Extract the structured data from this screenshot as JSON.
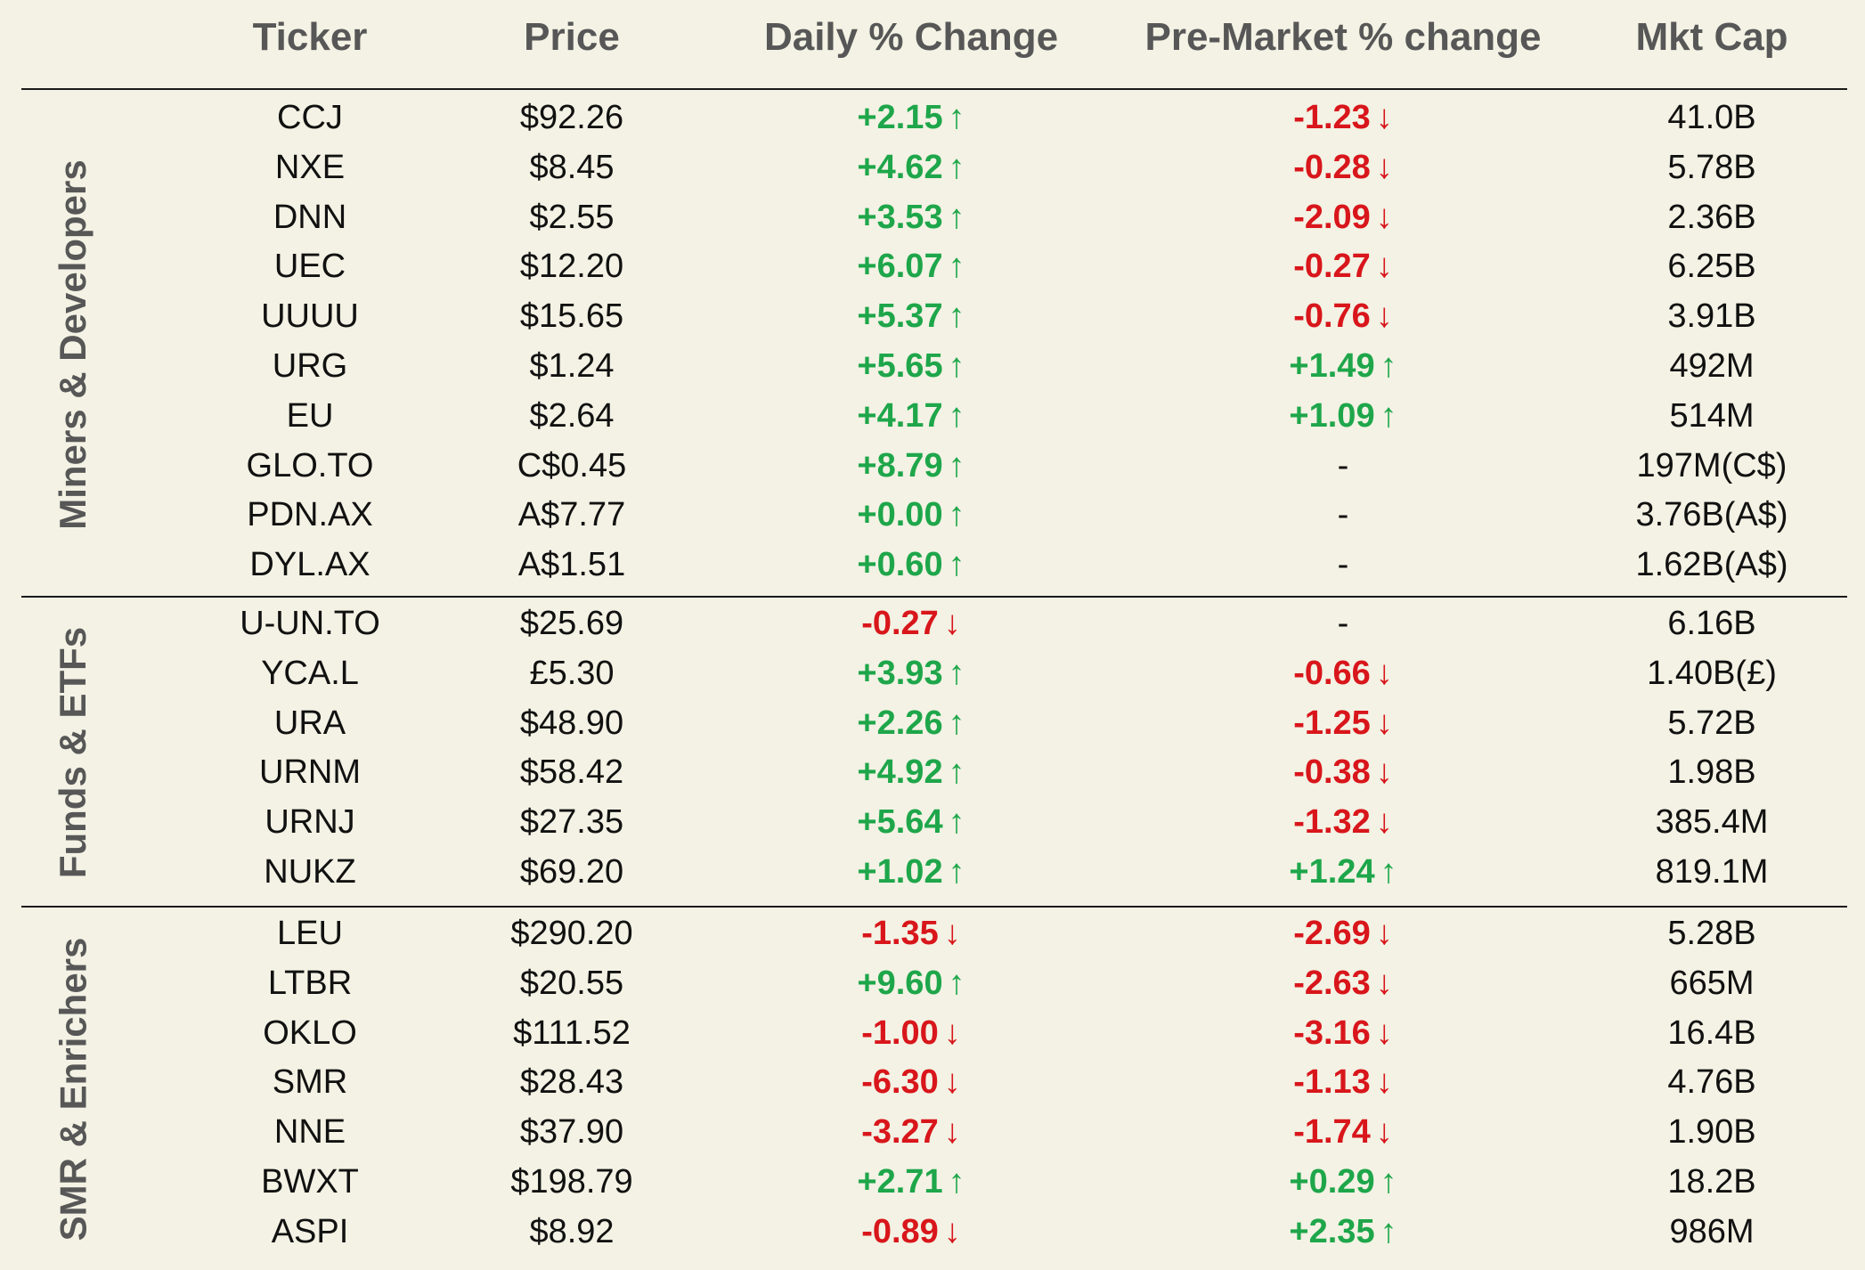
{
  "columns": [
    "Ticker",
    "Price",
    "Daily % Change",
    "Pre-Market % change",
    "Mkt Cap"
  ],
  "colors": {
    "up": "#1ea64a",
    "down": "#d8161b",
    "header": "#575757",
    "background": "#f3f2e4"
  },
  "icons": {
    "up": "↑",
    "down": "↓"
  },
  "chart_data": {
    "type": "table",
    "groups": [
      {
        "name": "Miners & Developers",
        "rows": [
          {
            "ticker": "CCJ",
            "price": "$92.26",
            "daily": "+2.15",
            "premarket": "-1.23",
            "mktcap": "41.0B"
          },
          {
            "ticker": "NXE",
            "price": "$8.45",
            "daily": "+4.62",
            "premarket": "-0.28",
            "mktcap": "5.78B"
          },
          {
            "ticker": "DNN",
            "price": "$2.55",
            "daily": "+3.53",
            "premarket": "-2.09",
            "mktcap": "2.36B"
          },
          {
            "ticker": "UEC",
            "price": "$12.20",
            "daily": "+6.07",
            "premarket": "-0.27",
            "mktcap": "6.25B"
          },
          {
            "ticker": "UUUU",
            "price": "$15.65",
            "daily": "+5.37",
            "premarket": "-0.76",
            "mktcap": "3.91B"
          },
          {
            "ticker": "URG",
            "price": "$1.24",
            "daily": "+5.65",
            "premarket": "+1.49",
            "mktcap": "492M"
          },
          {
            "ticker": "EU",
            "price": "$2.64",
            "daily": "+4.17",
            "premarket": "+1.09",
            "mktcap": "514M"
          },
          {
            "ticker": "GLO.TO",
            "price": "C$0.45",
            "daily": "+8.79",
            "premarket": "-",
            "mktcap": "197M(C$)"
          },
          {
            "ticker": "PDN.AX",
            "price": "A$7.77",
            "daily": "+0.00",
            "premarket": "-",
            "mktcap": "3.76B(A$)"
          },
          {
            "ticker": "DYL.AX",
            "price": "A$1.51",
            "daily": "+0.60",
            "premarket": "-",
            "mktcap": "1.62B(A$)"
          }
        ]
      },
      {
        "name": "Funds & ETFs",
        "rows": [
          {
            "ticker": "U-UN.TO",
            "price": "$25.69",
            "daily": "-0.27",
            "premarket": "-",
            "mktcap": "6.16B"
          },
          {
            "ticker": "YCA.L",
            "price": "£5.30",
            "daily": "+3.93",
            "premarket": "-0.66",
            "mktcap": "1.40B(£)"
          },
          {
            "ticker": "URA",
            "price": "$48.90",
            "daily": "+2.26",
            "premarket": "-1.25",
            "mktcap": "5.72B"
          },
          {
            "ticker": "URNM",
            "price": "$58.42",
            "daily": "+4.92",
            "premarket": "-0.38",
            "mktcap": "1.98B"
          },
          {
            "ticker": "URNJ",
            "price": "$27.35",
            "daily": "+5.64",
            "premarket": "-1.32",
            "mktcap": "385.4M"
          },
          {
            "ticker": "NUKZ",
            "price": "$69.20",
            "daily": "+1.02",
            "premarket": "+1.24",
            "mktcap": "819.1M"
          }
        ]
      },
      {
        "name": "SMR & Enrichers",
        "rows": [
          {
            "ticker": "LEU",
            "price": "$290.20",
            "daily": "-1.35",
            "premarket": "-2.69",
            "mktcap": "5.28B"
          },
          {
            "ticker": "LTBR",
            "price": "$20.55",
            "daily": "+9.60",
            "premarket": "-2.63",
            "mktcap": "665M"
          },
          {
            "ticker": "OKLO",
            "price": "$111.52",
            "daily": "-1.00",
            "premarket": "-3.16",
            "mktcap": "16.4B"
          },
          {
            "ticker": "SMR",
            "price": "$28.43",
            "daily": "-6.30",
            "premarket": "-1.13",
            "mktcap": "4.76B"
          },
          {
            "ticker": "NNE",
            "price": "$37.90",
            "daily": "-3.27",
            "premarket": "-1.74",
            "mktcap": "1.90B"
          },
          {
            "ticker": "BWXT",
            "price": "$198.79",
            "daily": "+2.71",
            "premarket": "+0.29",
            "mktcap": "18.2B"
          },
          {
            "ticker": "ASPI",
            "price": "$8.92",
            "daily": "-0.89",
            "premarket": "+2.35",
            "mktcap": "986M"
          }
        ]
      }
    ]
  }
}
